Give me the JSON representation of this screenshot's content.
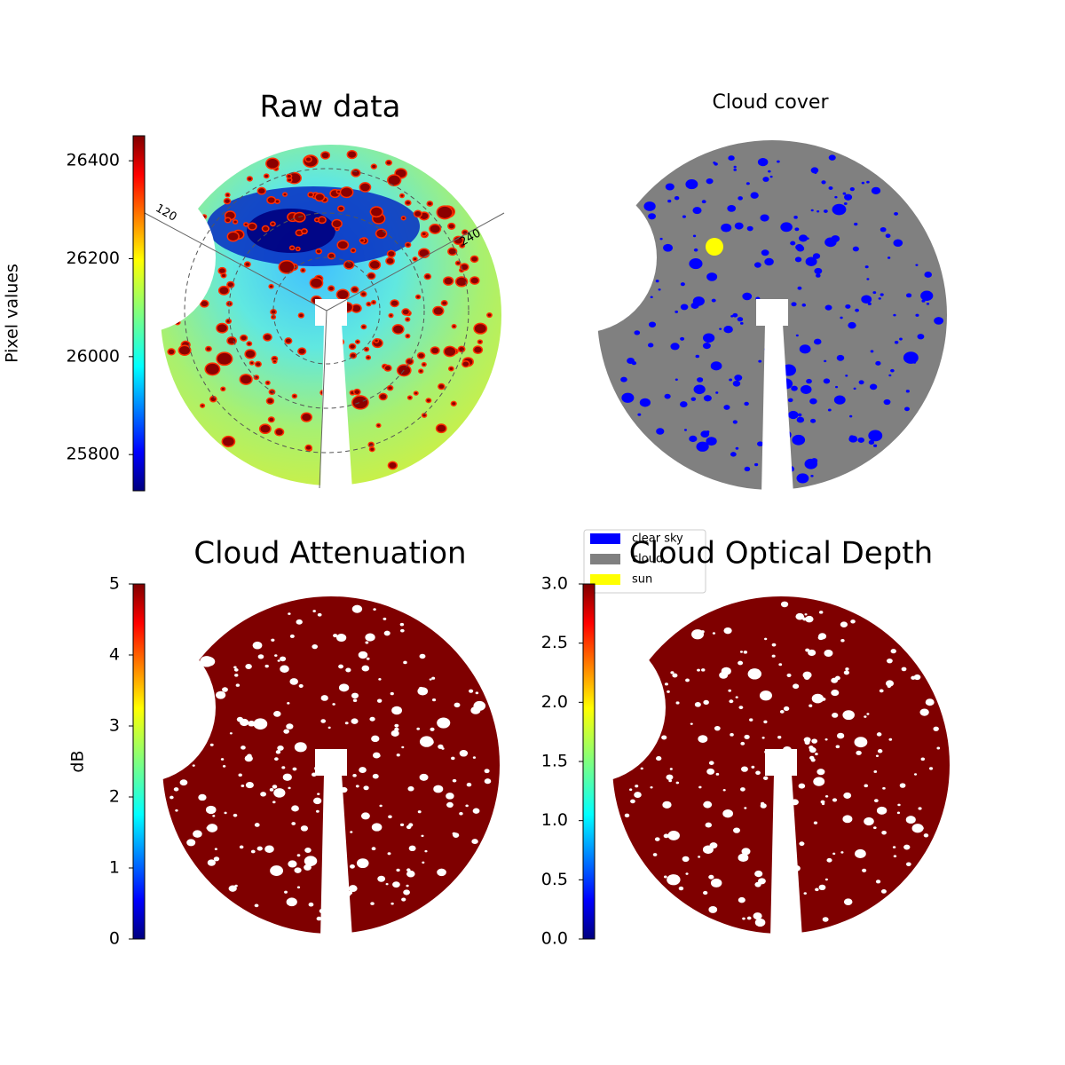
{
  "chart_data": [
    {
      "type": "image",
      "title": "Raw data",
      "annotations": [
        "120",
        "240"
      ],
      "colorbar": {
        "label": "Pixel values",
        "colormap": "jet",
        "lim": [
          25726,
          26451
        ],
        "ticks": [
          25800,
          26000,
          26200,
          26400
        ]
      }
    },
    {
      "type": "image",
      "title": "Cloud cover",
      "legend": [
        {
          "name": "clear sky",
          "color": "#0000ff"
        },
        {
          "name": "cloud",
          "color": "#808080"
        },
        {
          "name": "sun",
          "color": "#ffff00"
        }
      ]
    },
    {
      "type": "image",
      "title": "Cloud Attenuation",
      "colorbar": {
        "label": "dB",
        "colormap": "jet",
        "lim": [
          0,
          5
        ],
        "ticks": [
          0,
          1,
          2,
          3,
          4,
          5
        ]
      }
    },
    {
      "type": "image",
      "title": "Cloud Optical Depth",
      "colorbar": {
        "colormap": "jet",
        "lim": [
          0,
          3
        ],
        "ticks": [
          {
            "value": 0,
            "label": "0.0"
          },
          {
            "value": 0.5,
            "label": "0.5"
          },
          {
            "value": 1,
            "label": "1.0"
          },
          {
            "value": 1.5,
            "label": "1.5"
          },
          {
            "value": 2,
            "label": "2.0"
          },
          {
            "value": 2.5,
            "label": "2.5"
          },
          {
            "value": 3,
            "label": "3.0"
          }
        ]
      }
    }
  ]
}
